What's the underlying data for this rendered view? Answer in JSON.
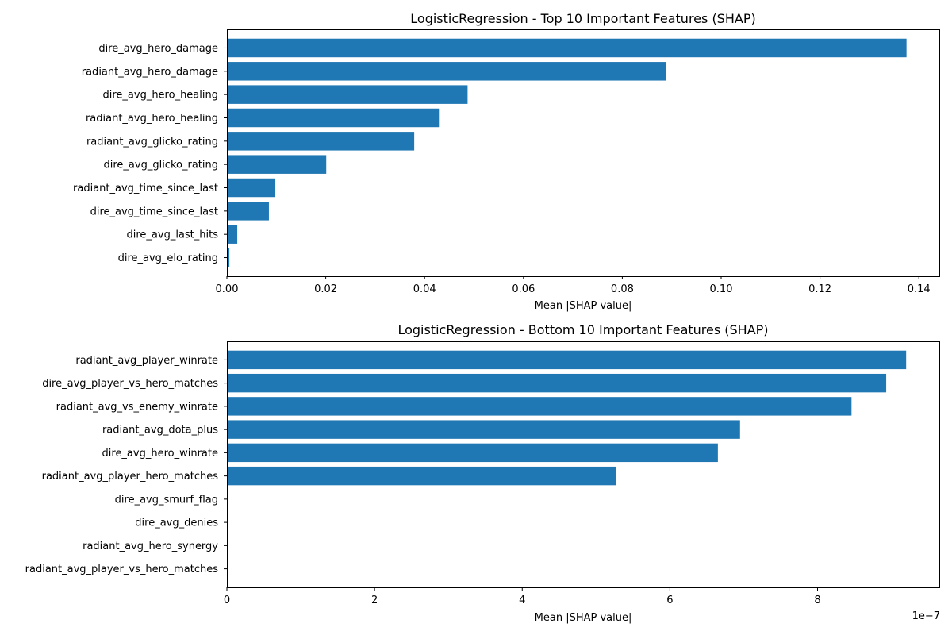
{
  "chart_data": [
    {
      "type": "bar",
      "orientation": "horizontal",
      "title": "LogisticRegression - Top 10 Important Features (SHAP)",
      "xlabel": "Mean |SHAP value|",
      "ylabel": "",
      "xlim": [
        0,
        0.1443
      ],
      "xticks": [
        0.0,
        0.02,
        0.04,
        0.06,
        0.08,
        0.1,
        0.12,
        0.14
      ],
      "xtick_labels": [
        "0.00",
        "0.02",
        "0.04",
        "0.06",
        "0.08",
        "0.10",
        "0.12",
        "0.14"
      ],
      "offset_label": "",
      "bar_color": "#1f77b4",
      "categories": [
        "dire_avg_elo_rating",
        "dire_avg_last_hits",
        "dire_avg_time_since_last",
        "radiant_avg_time_since_last",
        "dire_avg_glicko_rating",
        "radiant_avg_glicko_rating",
        "radiant_avg_hero_healing",
        "dire_avg_hero_healing",
        "radiant_avg_hero_damage",
        "dire_avg_hero_damage"
      ],
      "values": [
        0.0005,
        0.0021,
        0.0085,
        0.0098,
        0.0201,
        0.0379,
        0.0429,
        0.0487,
        0.0889,
        0.1375
      ]
    },
    {
      "type": "bar",
      "orientation": "horizontal",
      "title": "LogisticRegression - Bottom 10 Important Features (SHAP)",
      "xlabel": "Mean |SHAP value|",
      "ylabel": "",
      "xlim": [
        0,
        9.66
      ],
      "xticks": [
        0,
        2,
        4,
        6,
        8
      ],
      "xtick_labels": [
        "0",
        "2",
        "4",
        "6",
        "8"
      ],
      "offset_label": "1e−7",
      "bar_color": "#1f77b4",
      "categories": [
        "radiant_avg_player_vs_hero_matches",
        "radiant_avg_hero_synergy",
        "dire_avg_denies",
        "dire_avg_smurf_flag",
        "radiant_avg_player_hero_matches",
        "dire_avg_hero_winrate",
        "radiant_avg_dota_plus",
        "radiant_avg_vs_enemy_winrate",
        "dire_avg_player_vs_hero_matches",
        "radiant_avg_player_winrate"
      ],
      "values": [
        0,
        0,
        0,
        0,
        5.27,
        6.65,
        6.95,
        8.46,
        8.93,
        9.2
      ]
    }
  ]
}
